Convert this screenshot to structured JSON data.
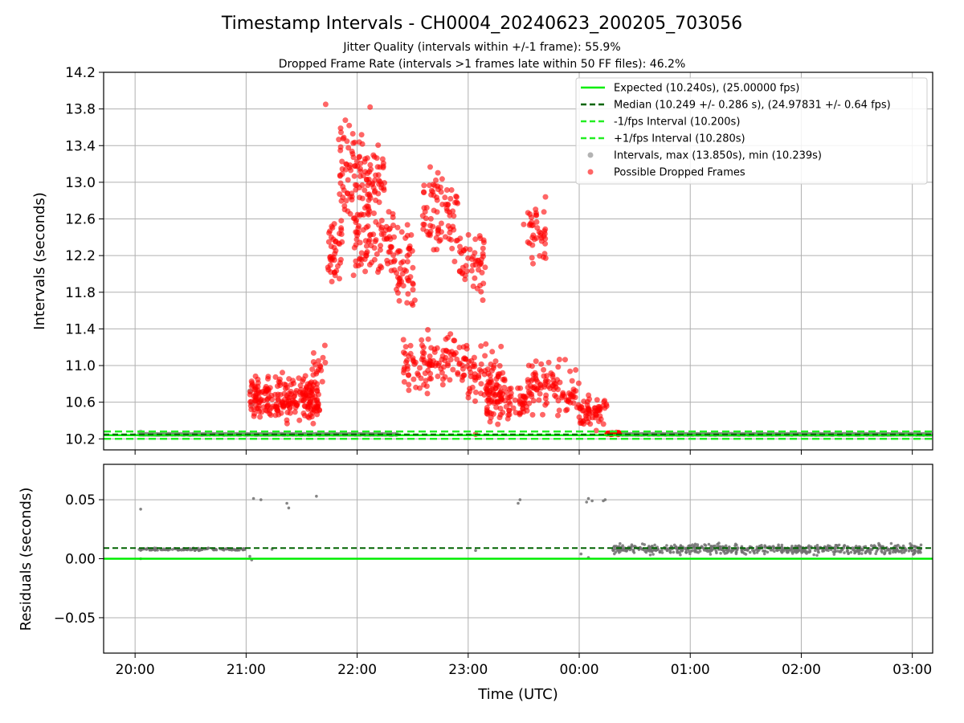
{
  "figure": {
    "title": "Timestamp Intervals - CH0004_20240623_200205_703056",
    "subtitle_1": "Jitter Quality (intervals within +/-1 frame): 55.9%",
    "subtitle_2": "Dropped Frame Rate (intervals >1 frames late within 50 FF files): 46.2%"
  },
  "colors": {
    "expected": "#00ee00",
    "median": "#006400",
    "bounds": "#22ee22",
    "intervals": "#808080",
    "dropped": "#ff0000"
  },
  "chart_data": [
    {
      "type": "scatter",
      "ylabel": "Intervals (seconds)",
      "ylim": [
        10.08,
        14.2
      ],
      "yticks": [
        "10.2",
        "10.6",
        "11.0",
        "11.4",
        "11.8",
        "12.2",
        "12.6",
        "13.0",
        "13.4",
        "13.8",
        "14.2"
      ],
      "xlim_minutes": [
        -17,
        431
      ],
      "grid": true,
      "legend_position": "top-right",
      "lines": {
        "expected": 10.24,
        "median": 10.249,
        "lower": 10.2,
        "upper": 10.28
      },
      "legend": [
        {
          "label": "Expected (10.240s), (25.00000 fps)",
          "style": "solid",
          "color": "#00ee00"
        },
        {
          "label": "Median (10.249 +/- 0.286 s), (24.97831 +/- 0.64 fps)",
          "style": "dashed",
          "color": "#006400"
        },
        {
          "label": "-1/fps Interval (10.200s)",
          "style": "dashed",
          "color": "#22ee22"
        },
        {
          "label": "+1/fps Interval (10.280s)",
          "style": "dashed",
          "color": "#22ee22"
        },
        {
          "label": "Intervals, max (13.850s), min (10.239s)",
          "style": "dot",
          "color": "#808080"
        },
        {
          "label": "Possible Dropped Frames",
          "style": "dot",
          "color": "#ff0000"
        }
      ],
      "interval_max": 13.85,
      "interval_min": 10.239,
      "normal_intervals_x_minutes": [
        2,
        142
      ],
      "normal_intervals_x_minutes_2": [
        261,
        430
      ],
      "dropped_clusters": [
        {
          "x_start": 62,
          "x_end": 100,
          "y_center": 10.62,
          "y_spread": 0.22,
          "count": 230
        },
        {
          "x_start": 95,
          "x_end": 103,
          "y_center": 10.95,
          "y_spread": 0.25,
          "count": 20
        },
        {
          "x_start": 104,
          "x_end": 112,
          "y_center": 12.25,
          "y_spread": 0.35,
          "count": 40
        },
        {
          "x_start": 110,
          "x_end": 125,
          "y_center": 13.05,
          "y_spread": 0.55,
          "count": 80
        },
        {
          "x_start": 118,
          "x_end": 140,
          "y_center": 12.35,
          "y_spread": 0.4,
          "count": 90
        },
        {
          "x_start": 125,
          "x_end": 135,
          "y_center": 13.05,
          "y_spread": 0.3,
          "count": 45
        },
        {
          "x_start": 140,
          "x_end": 152,
          "y_center": 12.05,
          "y_spread": 0.4,
          "count": 50
        },
        {
          "x_start": 145,
          "x_end": 160,
          "y_center": 11.05,
          "y_spread": 0.35,
          "count": 60
        },
        {
          "x_start": 155,
          "x_end": 175,
          "y_center": 12.65,
          "y_spread": 0.45,
          "count": 80
        },
        {
          "x_start": 160,
          "x_end": 180,
          "y_center": 11.05,
          "y_spread": 0.25,
          "count": 60
        },
        {
          "x_start": 175,
          "x_end": 190,
          "y_center": 12.15,
          "y_spread": 0.35,
          "count": 50
        },
        {
          "x_start": 180,
          "x_end": 200,
          "y_center": 10.85,
          "y_spread": 0.3,
          "count": 80
        },
        {
          "x_start": 190,
          "x_end": 212,
          "y_center": 10.6,
          "y_spread": 0.18,
          "count": 80
        },
        {
          "x_start": 212,
          "x_end": 222,
          "y_center": 12.45,
          "y_spread": 0.3,
          "count": 40
        },
        {
          "x_start": 212,
          "x_end": 240,
          "y_center": 10.75,
          "y_spread": 0.25,
          "count": 100
        },
        {
          "x_start": 240,
          "x_end": 255,
          "y_center": 10.5,
          "y_spread": 0.15,
          "count": 60
        },
        {
          "x_start": 255,
          "x_end": 262,
          "y_center": 10.26,
          "y_spread": 0.01,
          "count": 30
        }
      ],
      "isolated_dropped_points": [
        {
          "x": 127,
          "y": 13.82
        },
        {
          "x": 103,
          "y": 13.85
        },
        {
          "x": 210,
          "y": 12.54
        },
        {
          "x": 196,
          "y": 10.36
        },
        {
          "x": 184,
          "y": 10.25
        }
      ],
      "isolated_normal_points": [
        {
          "x": 3,
          "y": 10.27
        },
        {
          "x": 62,
          "y": 10.72
        },
        {
          "x": 63,
          "y": 10.58
        }
      ]
    },
    {
      "type": "scatter",
      "xlabel": "Time (UTC)",
      "ylabel": "Residuals (seconds)",
      "ylim": [
        -0.08,
        0.08
      ],
      "yticks": [
        "0.05",
        "0.00",
        "−0.05"
      ],
      "ytick_values": [
        0.05,
        0.0,
        -0.05
      ],
      "xticks": [
        "20:00",
        "21:00",
        "22:00",
        "23:00",
        "00:00",
        "01:00",
        "02:00",
        "03:00"
      ],
      "xtick_minutes": [
        0,
        60,
        120,
        180,
        240,
        300,
        360,
        420
      ],
      "grid": true,
      "lines": {
        "expected": 0.0,
        "median": 0.009
      },
      "residual_band_1": {
        "x_start": 2,
        "x_end": 60,
        "y_center": 0.008,
        "y_spread": 0.001,
        "count": 120
      },
      "residual_band_2": {
        "x_start": 258,
        "x_end": 425,
        "y_center": 0.008,
        "y_spread": 0.004,
        "count": 620
      },
      "outliers": [
        {
          "x": 3,
          "y": 0.042
        },
        {
          "x": 3,
          "y": 0.0
        },
        {
          "x": 64,
          "y": 0.051
        },
        {
          "x": 68,
          "y": 0.05
        },
        {
          "x": 82,
          "y": 0.047
        },
        {
          "x": 83,
          "y": 0.043
        },
        {
          "x": 98,
          "y": 0.053
        },
        {
          "x": 62,
          "y": 0.002
        },
        {
          "x": 63,
          "y": -0.001
        },
        {
          "x": 74,
          "y": 0.008
        },
        {
          "x": 207,
          "y": 0.047
        },
        {
          "x": 208,
          "y": 0.05
        },
        {
          "x": 244,
          "y": 0.048
        },
        {
          "x": 245,
          "y": 0.051
        },
        {
          "x": 247,
          "y": 0.049
        },
        {
          "x": 253,
          "y": 0.049
        },
        {
          "x": 254,
          "y": 0.05
        },
        {
          "x": 184,
          "y": 0.007
        },
        {
          "x": 245,
          "y": 0.001
        },
        {
          "x": 241,
          "y": 0.004
        }
      ]
    }
  ]
}
